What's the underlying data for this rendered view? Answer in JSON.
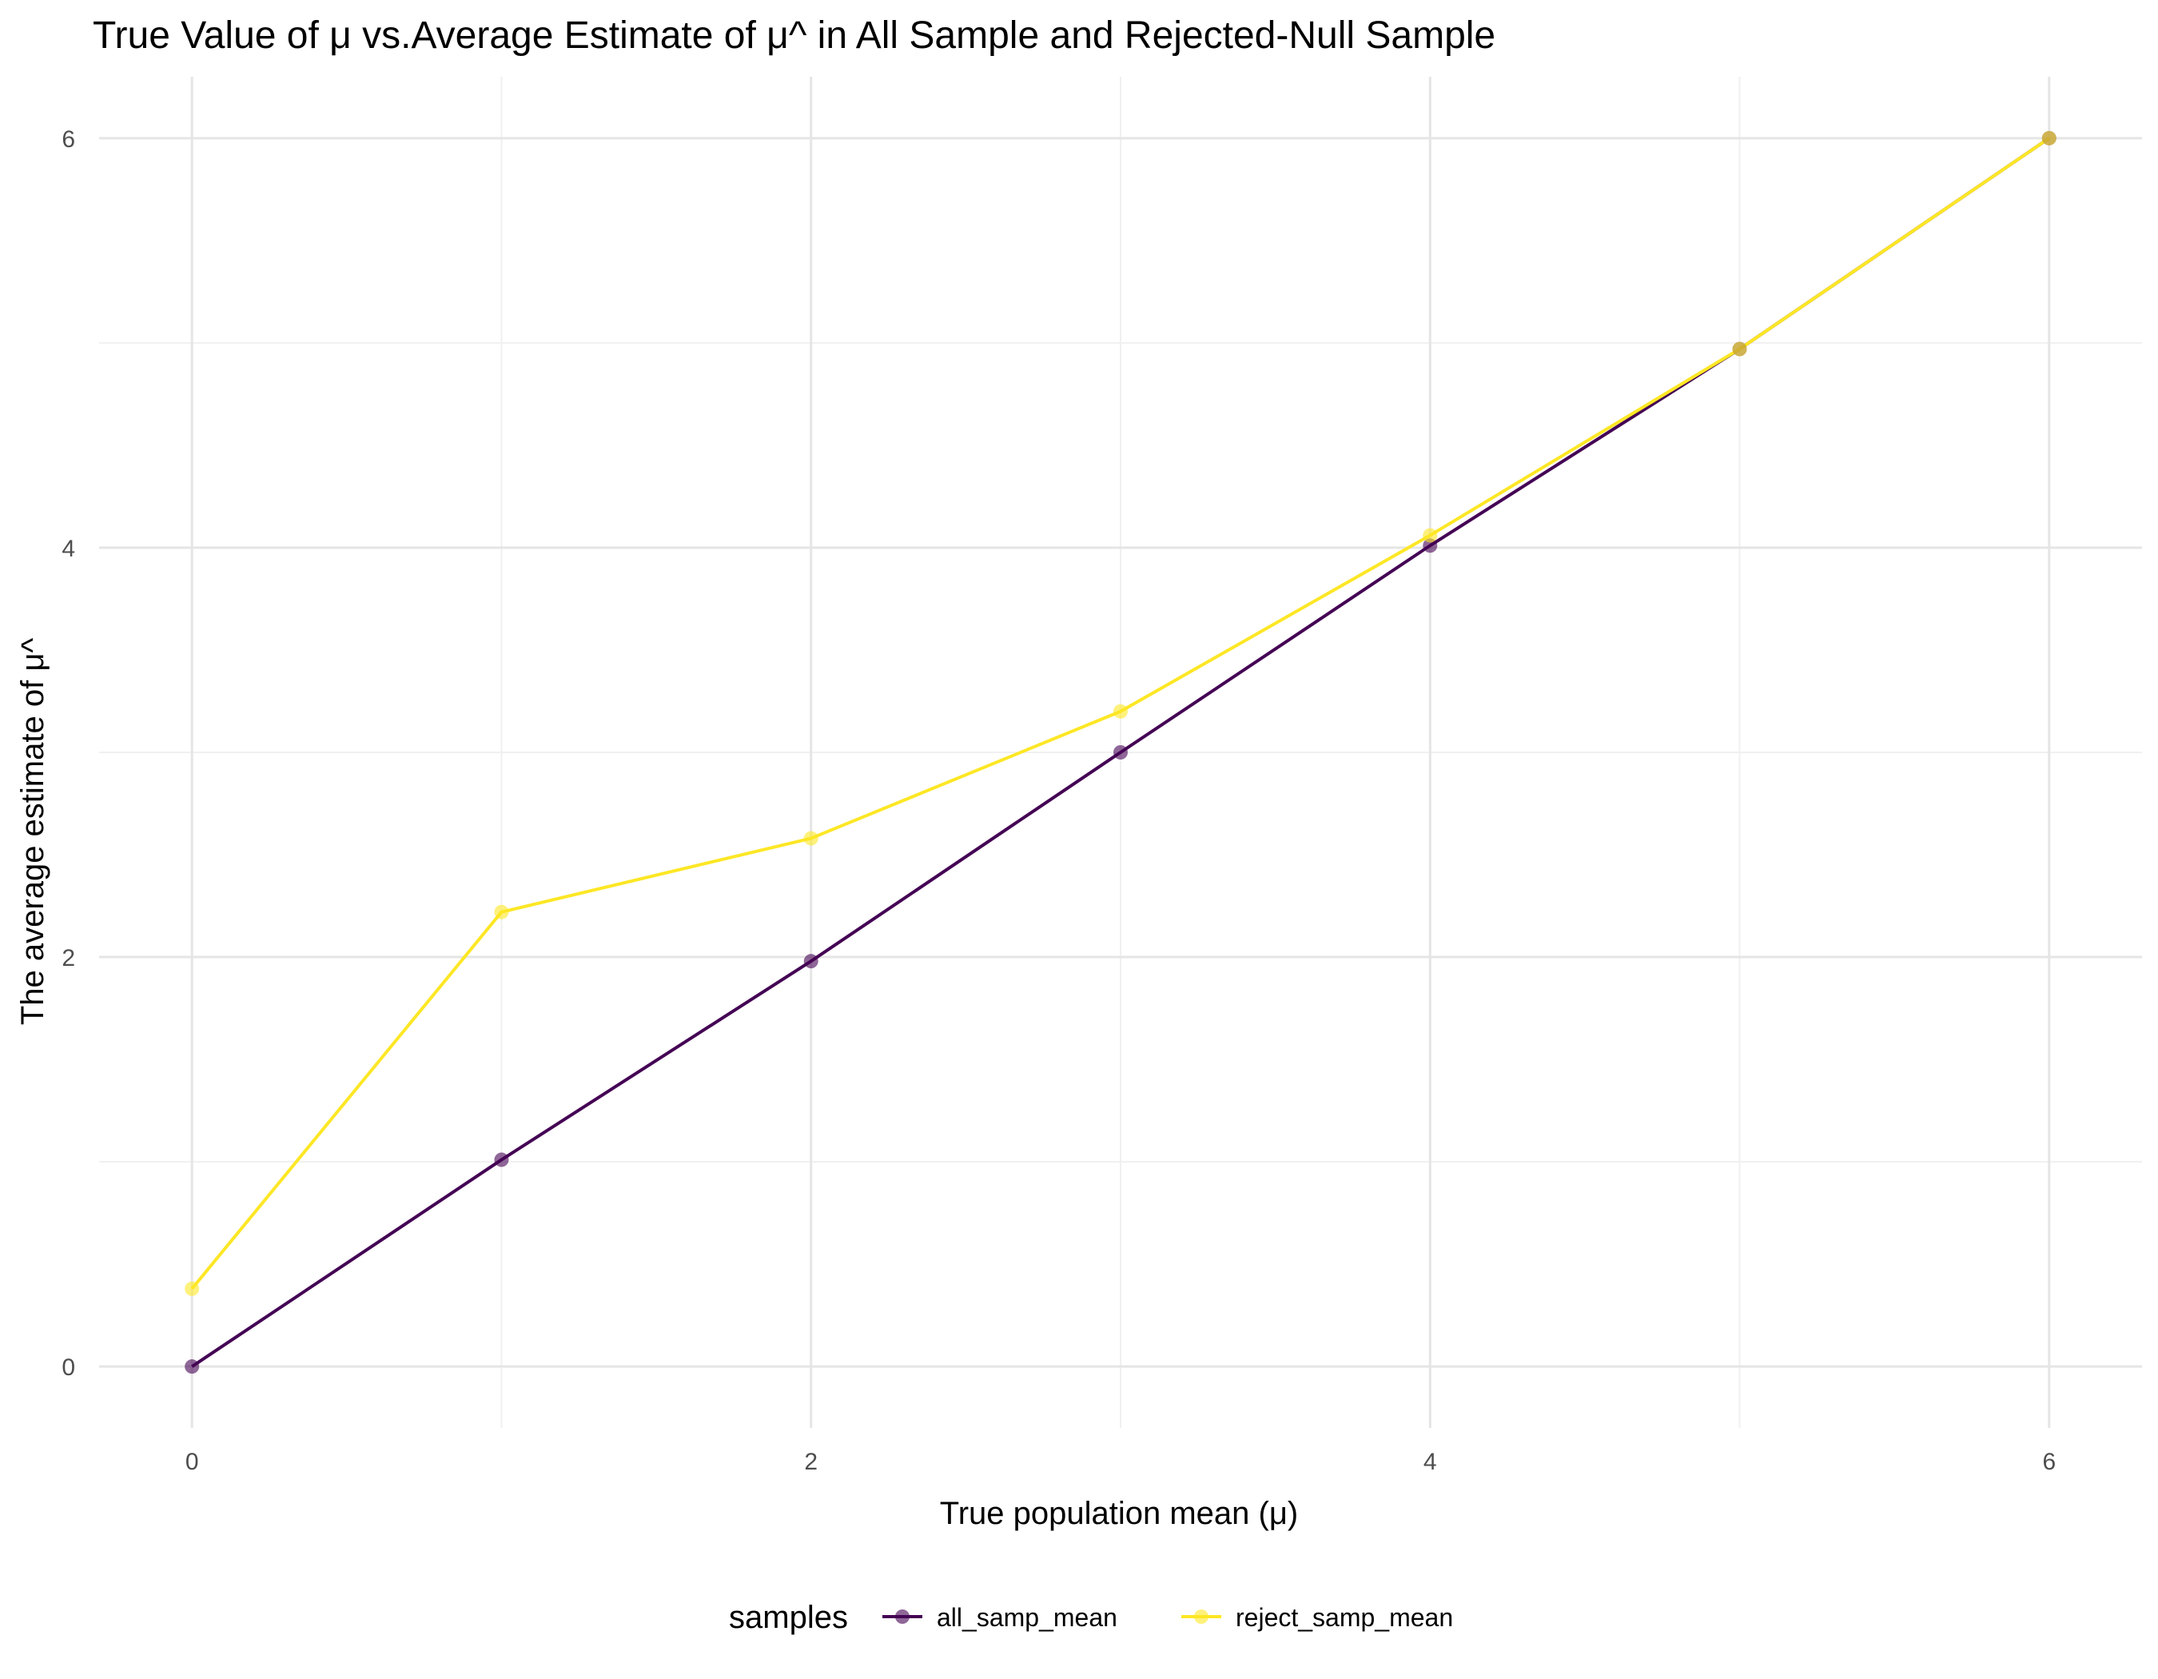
{
  "chart_data": {
    "type": "line",
    "title": "True Value of μ vs.Average Estimate of μ^ in All Sample and Rejected-Null Sample",
    "xlabel": "True population mean (μ)",
    "ylabel": "The average estimate of μ^",
    "xlim": [
      -0.3,
      6.3
    ],
    "ylim": [
      -0.3,
      6.3
    ],
    "x_ticks": [
      0,
      2,
      4,
      6
    ],
    "y_ticks": [
      0,
      2,
      4,
      6
    ],
    "x_minor": [
      1,
      3,
      5
    ],
    "y_minor": [
      1,
      3,
      5
    ],
    "grid": true,
    "legend": {
      "title": "samples",
      "position": "bottom"
    },
    "x": [
      0,
      1,
      2,
      3,
      4,
      5,
      6
    ],
    "series": [
      {
        "name": "all_samp_mean",
        "color": "#440154",
        "values": [
          0.0,
          1.01,
          1.98,
          3.0,
          4.01,
          4.97,
          6.0
        ]
      },
      {
        "name": "reject_samp_mean",
        "color": "#FDE725",
        "values": [
          0.38,
          2.22,
          2.58,
          3.2,
          4.06,
          4.97,
          6.0
        ]
      }
    ]
  }
}
